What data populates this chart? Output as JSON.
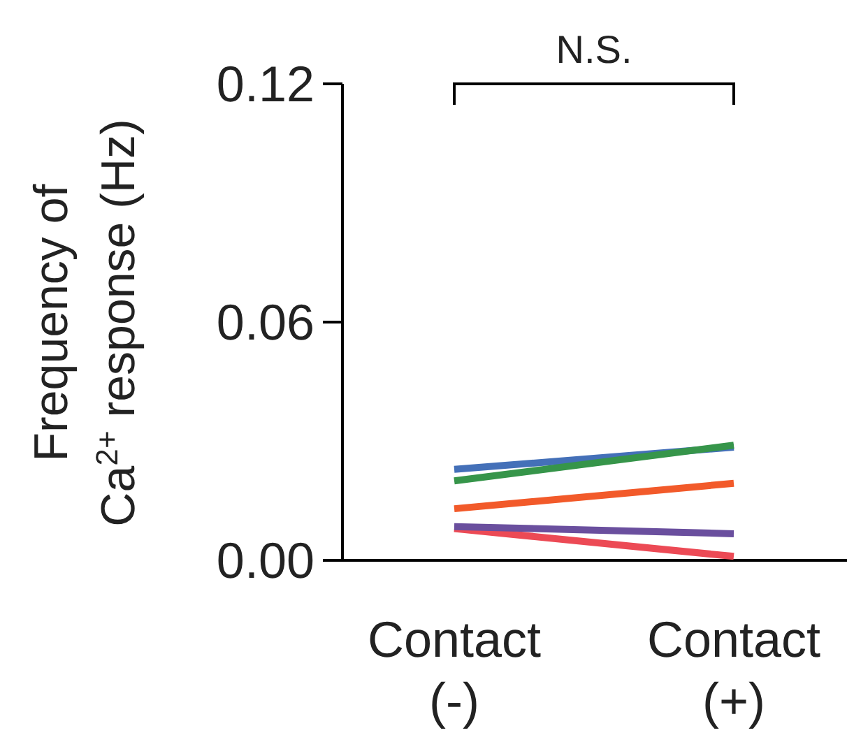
{
  "chart_data": {
    "type": "line",
    "ylabel": "Frequency of Ca$^{2+}$ response (Hz)",
    "categories": [
      "Contact (-)",
      "Contact (+)"
    ],
    "series": [
      {
        "color": "#4470b8",
        "values": [
          0.0229,
          0.0285
        ]
      },
      {
        "color": "#36954a",
        "values": [
          0.02,
          0.029
        ]
      },
      {
        "color": "#f25a2a",
        "values": [
          0.013,
          0.0194
        ]
      },
      {
        "color": "#ec4a55",
        "values": [
          0.008,
          0.001
        ]
      },
      {
        "color": "#6a4f9e",
        "values": [
          0.0085,
          0.0067
        ]
      }
    ],
    "ylim": [
      0,
      0.12
    ],
    "yticks": [
      {
        "value": 0,
        "label": "0.00"
      },
      {
        "value": 0.06,
        "label": "0.06"
      },
      {
        "value": 0.12,
        "label": "0.12"
      }
    ],
    "annotations": [
      "N.S."
    ],
    "marker": "none",
    "line_style": "solid",
    "grid": false
  }
}
